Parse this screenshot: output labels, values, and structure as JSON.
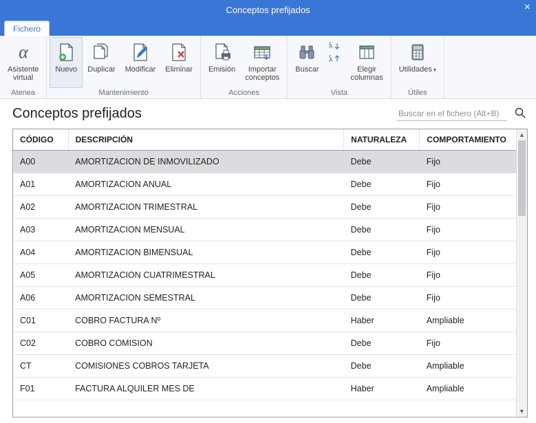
{
  "window": {
    "title": "Conceptos prefijados",
    "close_glyph": "×"
  },
  "tabs": {
    "file": "Fichero"
  },
  "ribbon": {
    "groups": {
      "atenea": {
        "label": "Atenea"
      },
      "mantenimiento": {
        "label": "Mantenimiento"
      },
      "acciones": {
        "label": "Acciones"
      },
      "vista": {
        "label": "Vista"
      },
      "utiles": {
        "label": "Útiles"
      }
    },
    "buttons": {
      "asistente": "Asistente\nvirtual",
      "nuevo": "Nuevo",
      "duplicar": "Duplicar",
      "modificar": "Modificar",
      "eliminar": "Eliminar",
      "emision": "Emisión",
      "importar": "Importar\nconceptos",
      "buscar": "Buscar",
      "sort_asc": "",
      "sort_desc": "",
      "elegir_col": "Elegir\ncolumnas",
      "utilidades": "Utilidades"
    },
    "colors": {
      "icon_stroke": "#4a5a73",
      "green": "#3fae4a",
      "red": "#d64545",
      "blue": "#3a76d6"
    }
  },
  "page": {
    "heading": "Conceptos prefijados",
    "search_placeholder": "Buscar en el fichero (Alt+B)"
  },
  "table": {
    "col_widths": {
      "codigo": 80,
      "descripcion": 400,
      "naturaleza": 110,
      "comport": 140
    },
    "headers": {
      "codigo": "CÓDIGO",
      "descripcion": "DESCRIPCIÓN",
      "naturaleza": "NATURALEZA",
      "comport": "COMPORTAMIENTO"
    },
    "rows": [
      {
        "codigo": "A00",
        "descripcion": "AMORTIZACION DE INMOVILIZADO",
        "naturaleza": "Debe",
        "comport": "Fijo",
        "selected": true
      },
      {
        "codigo": "A01",
        "descripcion": "AMORTIZACION ANUAL",
        "naturaleza": "Debe",
        "comport": "Fijo"
      },
      {
        "codigo": "A02",
        "descripcion": "AMORTIZACION TRIMESTRAL",
        "naturaleza": "Debe",
        "comport": "Fijo"
      },
      {
        "codigo": "A03",
        "descripcion": "AMORTIZACION MENSUAL",
        "naturaleza": "Debe",
        "comport": "Fijo"
      },
      {
        "codigo": "A04",
        "descripcion": "AMORTIZACION BIMENSUAL",
        "naturaleza": "Debe",
        "comport": "Fijo"
      },
      {
        "codigo": "A05",
        "descripcion": "AMORTIZACION CUATRIMESTRAL",
        "naturaleza": "Debe",
        "comport": "Fijo"
      },
      {
        "codigo": "A06",
        "descripcion": "AMORTIZACION SEMESTRAL",
        "naturaleza": "Debe",
        "comport": "Fijo"
      },
      {
        "codigo": "C01",
        "descripcion": "COBRO FACTURA Nº",
        "naturaleza": "Haber",
        "comport": "Ampliable"
      },
      {
        "codigo": "C02",
        "descripcion": "COBRO COMISION",
        "naturaleza": "Debe",
        "comport": "Fijo"
      },
      {
        "codigo": "CT",
        "descripcion": "COMISIONES COBROS TARJETA",
        "naturaleza": "Debe",
        "comport": "Ampliable"
      },
      {
        "codigo": "F01",
        "descripcion": "FACTURA ALQUILER MES DE",
        "naturaleza": "Haber",
        "comport": "Ampliable"
      }
    ]
  }
}
